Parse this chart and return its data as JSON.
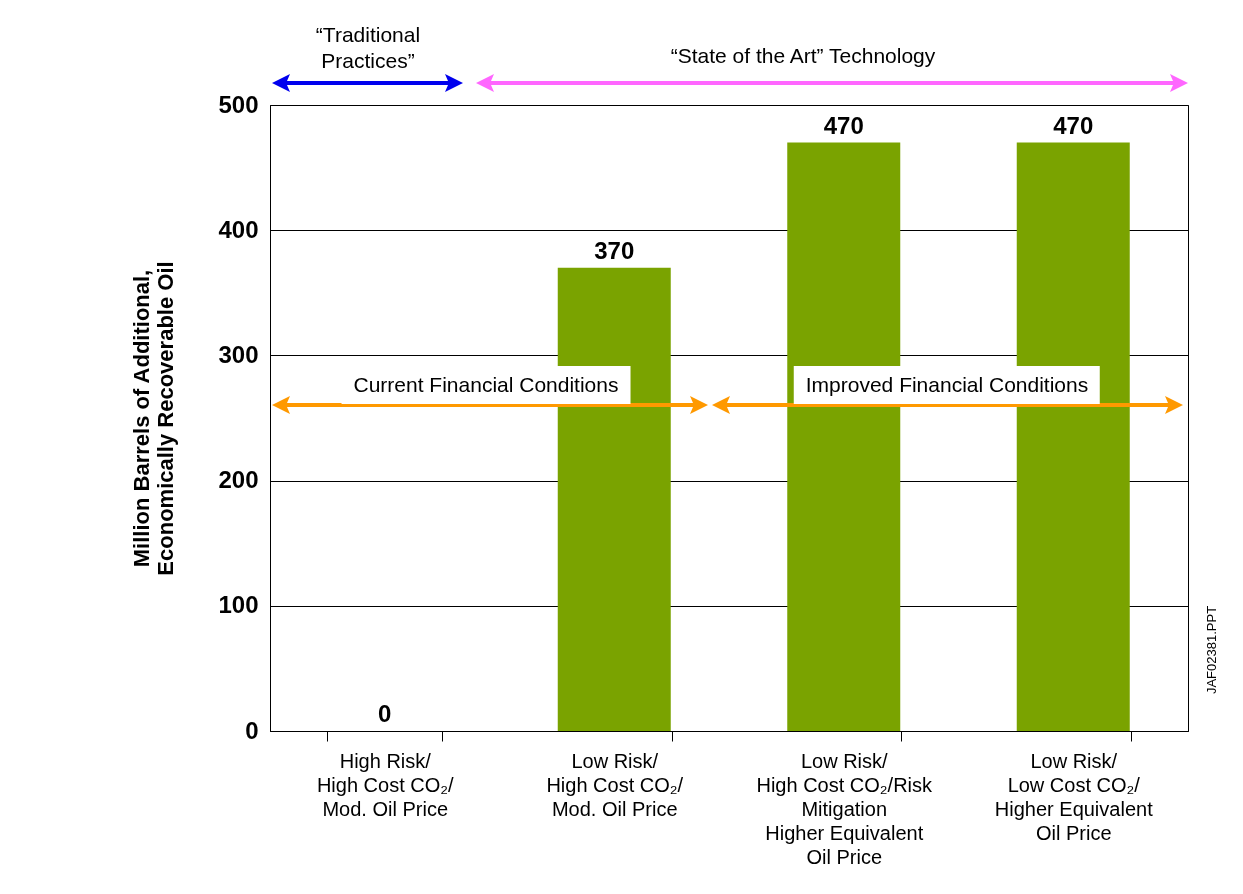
{
  "chart_data": {
    "type": "bar",
    "categories": [
      "High Risk/\nHigh Cost CO₂/\nMod. Oil Price",
      "Low Risk/\nHigh Cost CO₂/\nMod. Oil Price",
      "Low Risk/\nHigh Cost CO₂/Risk\nMitigation\nHigher Equivalent\nOil Price",
      "Low Risk/\nLow Cost CO₂/\nHigher Equivalent\nOil Price"
    ],
    "values": [
      0,
      370,
      470,
      470
    ],
    "color": "#7aa300",
    "ylabel": "Million Barrels of Additional,\nEconomically Recoverable Oil",
    "ylim": [
      0,
      500
    ],
    "yticks": [
      0,
      100,
      200,
      300,
      400,
      500
    ],
    "grid": "y",
    "data_labels": true,
    "annotations": [
      "“Traditional Practices”",
      "“State of the Art” Technology",
      "Current Financial Conditions",
      "Improved Financial Conditions",
      "JAF02381.PPT"
    ]
  }
}
